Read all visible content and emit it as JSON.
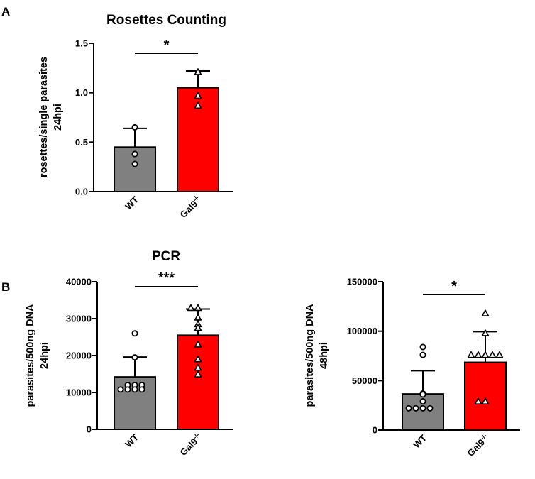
{
  "panels": {
    "a": "A",
    "b": "B"
  },
  "section_titles": {
    "pcr": "PCR"
  },
  "chart_data": [
    {
      "type": "bar",
      "title": "Rosettes Counting",
      "categories": [
        "WT",
        "Gal9"
      ],
      "category_superscripts": [
        "",
        "-/-"
      ],
      "bar_colors": [
        "#808080",
        "#ff0000"
      ],
      "values": [
        0.45,
        1.05
      ],
      "error_sd": [
        0.19,
        0.17
      ],
      "points": [
        [
          0.65,
          0.38,
          0.28
        ],
        [
          1.21,
          0.97,
          0.87
        ]
      ],
      "point_markers": [
        "circle",
        "triangle"
      ],
      "ylabel": [
        "rosettes/single parasites",
        "24hpi"
      ],
      "xlabel": "",
      "ylim": [
        0,
        1.5
      ],
      "yticks": [
        0.0,
        0.5,
        1.0,
        1.5
      ],
      "ytick_labels": [
        "0.0",
        "0.5",
        "1.0",
        "1.5"
      ],
      "significance": {
        "label": "*",
        "between": [
          0,
          1
        ]
      }
    },
    {
      "type": "bar",
      "title": "",
      "categories": [
        "WT",
        "Gal9"
      ],
      "category_superscripts": [
        "",
        "-/-"
      ],
      "bar_colors": [
        "#808080",
        "#ff0000"
      ],
      "values": [
        14200,
        25500
      ],
      "error_sd": [
        5400,
        7100
      ],
      "points": [
        [
          26000,
          19500,
          12000,
          12000,
          12000,
          10800,
          10800,
          10800,
          10800
        ],
        [
          32900,
          32900,
          30300,
          28500,
          27500,
          23000,
          19000,
          16700,
          14900
        ]
      ],
      "point_markers": [
        "circle",
        "triangle"
      ],
      "ylabel": [
        "parasites/500ng DNA",
        "24hpi"
      ],
      "xlabel": "",
      "ylim": [
        0,
        40000
      ],
      "yticks": [
        0,
        10000,
        20000,
        30000,
        40000
      ],
      "ytick_labels": [
        "0",
        "10000",
        "20000",
        "30000",
        "40000"
      ],
      "significance": {
        "label": "***",
        "between": [
          0,
          1
        ]
      }
    },
    {
      "type": "bar",
      "title": "",
      "categories": [
        "WT",
        "Gal9"
      ],
      "category_superscripts": [
        "",
        "-/-"
      ],
      "bar_colors": [
        "#808080",
        "#ff0000"
      ],
      "values": [
        36500,
        68500
      ],
      "error_sd": [
        23500,
        31000
      ],
      "points": [
        [
          84000,
          76000,
          37000,
          36000,
          29000,
          22000,
          22000,
          22000,
          22000
        ],
        [
          118000,
          98000,
          76000,
          76000,
          76000,
          76000,
          76000,
          29000,
          29000
        ]
      ],
      "point_markers": [
        "circle",
        "triangle"
      ],
      "ylabel": [
        "parasites/500ng DNA",
        "48hpi"
      ],
      "xlabel": "",
      "ylim": [
        0,
        150000
      ],
      "yticks": [
        0,
        50000,
        100000,
        150000
      ],
      "ytick_labels": [
        "0",
        "50000",
        "100000",
        "150000"
      ],
      "significance": {
        "label": "*",
        "between": [
          0,
          1
        ]
      }
    }
  ]
}
